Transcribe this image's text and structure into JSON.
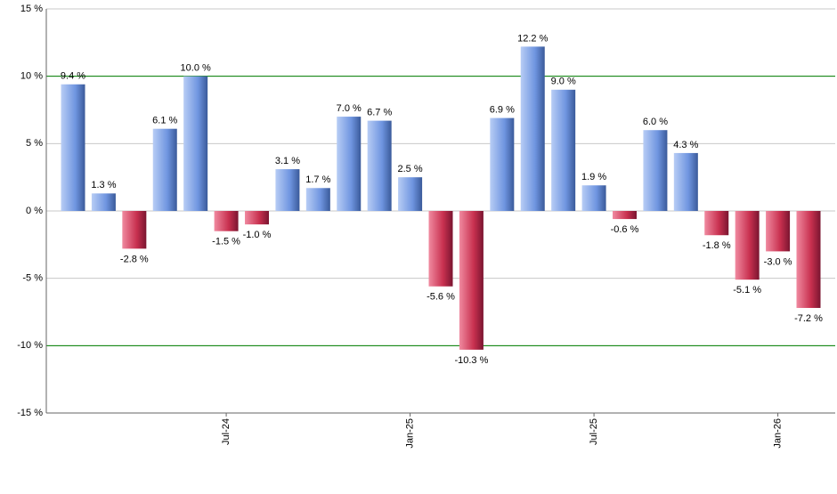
{
  "chart_data": {
    "type": "bar",
    "categories": [
      null,
      null,
      null,
      null,
      null,
      "Jul-24",
      null,
      null,
      null,
      null,
      null,
      "Jan-25",
      null,
      null,
      null,
      null,
      null,
      "Jul-25",
      null,
      null,
      null,
      null,
      null,
      "Jan-26",
      null
    ],
    "values": [
      9.4,
      1.3,
      -2.8,
      6.1,
      10.0,
      -1.5,
      -1.0,
      3.1,
      1.7,
      7.0,
      6.7,
      2.5,
      -5.6,
      -10.3,
      6.9,
      12.2,
      9.0,
      1.9,
      -0.6,
      6.0,
      4.3,
      -1.8,
      -5.1,
      -3.0,
      -7.2
    ],
    "value_labels": [
      "9.4 %",
      "1.3 %",
      "-2.8 %",
      "6.1 %",
      "10.0 %",
      "-1.5 %",
      "-1.0 %",
      "3.1 %",
      "1.7 %",
      "7.0 %",
      "6.7 %",
      "2.5 %",
      "-5.6 %",
      "-10.3 %",
      "6.9 %",
      "12.2 %",
      "9.0 %",
      "1.9 %",
      "-0.6 %",
      "6.0 %",
      "4.3 %",
      "-1.8 %",
      "-5.1 %",
      "-3.0 %",
      "-7.2 %"
    ],
    "positive_color": "#6f95e0",
    "negative_color": "#c8304f",
    "ylim": [
      -15,
      15
    ],
    "yticks": [
      {
        "value": -15,
        "label": "-15 %"
      },
      {
        "value": -10,
        "label": "-10 %"
      },
      {
        "value": -5,
        "label": "-5 %"
      },
      {
        "value": 0,
        "label": "0 %"
      },
      {
        "value": 5,
        "label": "5 %"
      },
      {
        "value": 10,
        "label": "10 %"
      },
      {
        "value": 15,
        "label": "15 %"
      }
    ],
    "grid": true,
    "reference_lines": [
      -10,
      10
    ],
    "reference_color": "#008000"
  }
}
